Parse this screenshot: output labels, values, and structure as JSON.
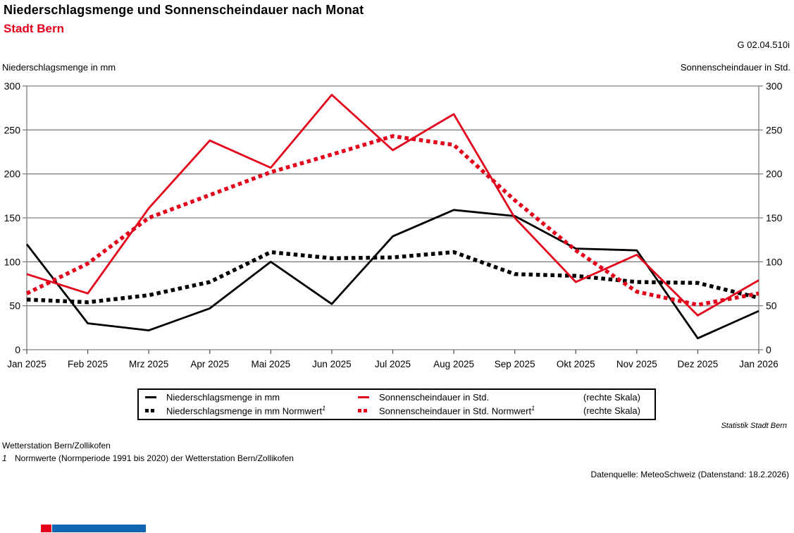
{
  "header": {
    "title": "Niederschlagsmenge und Sonnenscheindauer nach Monat",
    "subtitle": "Stadt Bern",
    "graph_id": "G 02.04.510i"
  },
  "axes": {
    "left_label": "Niederschlagsmenge in mm",
    "right_label": "Sonnenscheindauer in Std.",
    "y_ticks": [
      0,
      50,
      100,
      150,
      200,
      250,
      300
    ]
  },
  "chart_data": {
    "type": "line",
    "title": "Niederschlagsmenge und Sonnenscheindauer nach Monat",
    "subtitle": "Stadt Bern",
    "categories": [
      "Jan 2025",
      "Feb 2025",
      "Mrz 2025",
      "Apr 2025",
      "Mai 2025",
      "Jun 2025",
      "Jul 2025",
      "Aug 2025",
      "Sep 2025",
      "Okt 2025",
      "Nov 2025",
      "Dez 2025",
      "Jan 2026"
    ],
    "series": [
      {
        "name": "Niederschlagsmenge in mm",
        "line_style": "solid",
        "color": "#000000",
        "axis": "left",
        "values": [
          120,
          30,
          22,
          47,
          100,
          52,
          129,
          159,
          152,
          115,
          113,
          13,
          44
        ]
      },
      {
        "name": "Niederschlagsmenge in mm Normwert",
        "line_style": "dotted",
        "color": "#000000",
        "axis": "left",
        "values": [
          57,
          54,
          62,
          77,
          111,
          104,
          105,
          111,
          86,
          84,
          77,
          76,
          59
        ]
      },
      {
        "name": "Sonnenscheindauer in Std.",
        "line_style": "solid",
        "color": "#e2001a",
        "axis": "right",
        "values": [
          86,
          64,
          161,
          238,
          207,
          290,
          227,
          268,
          150,
          77,
          108,
          39,
          79
        ]
      },
      {
        "name": "Sonnenscheindauer in Std. Normwert",
        "line_style": "dotted",
        "color": "#e2001a",
        "axis": "right",
        "values": [
          64,
          98,
          150,
          176,
          202,
          222,
          243,
          233,
          170,
          113,
          66,
          51,
          64
        ]
      }
    ],
    "ylim": [
      0,
      300
    ],
    "y_tick_step": 50,
    "grid": true,
    "legend_position": "bottom",
    "ylabel_left": "Niederschlagsmenge in mm",
    "ylabel_right": "Sonnenscheindauer in Std."
  },
  "legend": {
    "sup": "1",
    "row1": {
      "col1": "Niederschlagsmenge in mm",
      "col2": "Sonnenscheindauer in Std.",
      "note": "(rechte Skala)"
    },
    "row2": {
      "col1": "Niederschlagsmenge in mm Normwert",
      "col2": "Sonnenscheindauer in Std. Normwert",
      "note": "(rechte Skala)"
    }
  },
  "footer": {
    "attribution": "Statistik Stadt Bern",
    "station_note": "Wetterstation Bern/Zollikofen",
    "footnote_marker": "1",
    "footnote_text": "Normwerte (Normperiode 1991 bis 2020) der Wetterstation Bern/Zollikofen",
    "source": "Datenquelle: MeteoSchweiz (Datenstand: 18.2.2026)"
  },
  "colors": {
    "accent_red": "#e2001a",
    "line_black": "#000000",
    "grid_gray": "#808080",
    "logo_red": "#e2001a",
    "logo_blue": "#1066b2"
  }
}
